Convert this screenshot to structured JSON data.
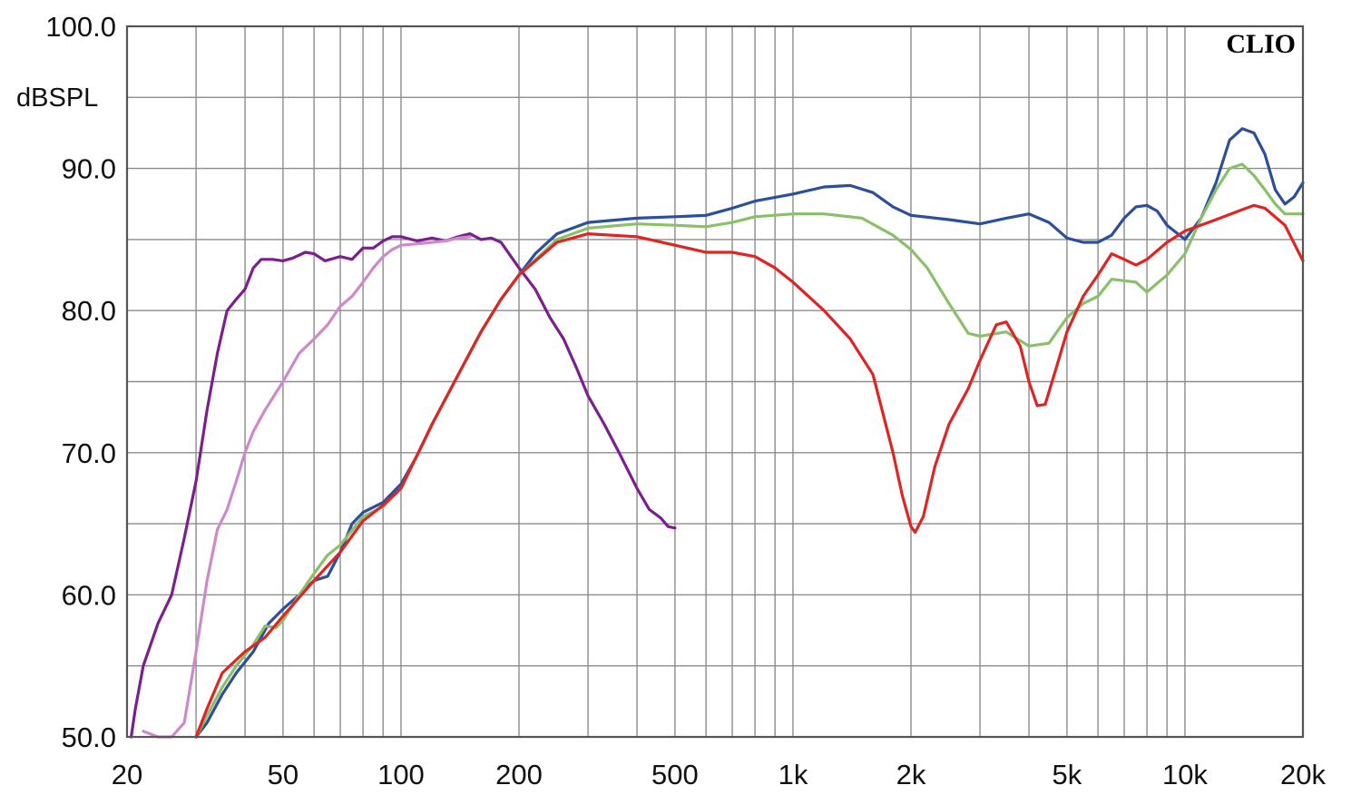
{
  "chart_data": {
    "type": "line",
    "title": "",
    "brand_label": "CLIO",
    "ylabel": "dBSPL",
    "xlabel": "",
    "x_scale": "log",
    "xlim": [
      20,
      20000
    ],
    "ylim": [
      50,
      100
    ],
    "grid": true,
    "x_ticks": [
      {
        "value": 20,
        "label": "20"
      },
      {
        "value": 50,
        "label": "50"
      },
      {
        "value": 100,
        "label": "100"
      },
      {
        "value": 200,
        "label": "200"
      },
      {
        "value": 500,
        "label": "500"
      },
      {
        "value": 1000,
        "label": "1k"
      },
      {
        "value": 2000,
        "label": "2k"
      },
      {
        "value": 5000,
        "label": "5k"
      },
      {
        "value": 10000,
        "label": "10k"
      },
      {
        "value": 20000,
        "label": "20k"
      }
    ],
    "y_ticks": [
      {
        "value": 50,
        "label": "50.0"
      },
      {
        "value": 60,
        "label": "60.0"
      },
      {
        "value": 70,
        "label": "70.0"
      },
      {
        "value": 80,
        "label": "80.0"
      },
      {
        "value": 90,
        "label": "90.0"
      },
      {
        "value": 100,
        "label": "100.0"
      }
    ],
    "series": [
      {
        "color": "#7b1f8e",
        "points": [
          [
            20.5,
            50
          ],
          [
            21,
            52
          ],
          [
            22,
            55
          ],
          [
            24,
            58
          ],
          [
            26,
            60
          ],
          [
            28,
            64
          ],
          [
            30,
            68
          ],
          [
            32,
            73
          ],
          [
            34,
            77
          ],
          [
            36,
            80
          ],
          [
            38,
            80.8
          ],
          [
            40,
            81.5
          ],
          [
            42,
            83
          ],
          [
            44,
            83.6
          ],
          [
            47,
            83.6
          ],
          [
            50,
            83.5
          ],
          [
            53,
            83.7
          ],
          [
            57,
            84.1
          ],
          [
            60,
            84
          ],
          [
            64,
            83.5
          ],
          [
            70,
            83.8
          ],
          [
            75,
            83.6
          ],
          [
            80,
            84.4
          ],
          [
            85,
            84.4
          ],
          [
            90,
            84.9
          ],
          [
            95,
            85.2
          ],
          [
            100,
            85.2
          ],
          [
            110,
            84.9
          ],
          [
            120,
            85.1
          ],
          [
            130,
            84.9
          ],
          [
            140,
            85.2
          ],
          [
            150,
            85.4
          ],
          [
            160,
            85
          ],
          [
            170,
            85.1
          ],
          [
            180,
            84.8
          ],
          [
            200,
            83
          ],
          [
            220,
            81.5
          ],
          [
            240,
            79.5
          ],
          [
            260,
            78
          ],
          [
            280,
            76
          ],
          [
            300,
            74
          ],
          [
            330,
            72
          ],
          [
            360,
            70
          ],
          [
            400,
            67.5
          ],
          [
            430,
            66
          ],
          [
            460,
            65.4
          ],
          [
            480,
            64.8
          ],
          [
            500,
            64.7
          ]
        ]
      },
      {
        "color": "#cc8acb",
        "points": [
          [
            22,
            50.4
          ],
          [
            24,
            50
          ],
          [
            26,
            50
          ],
          [
            28,
            51
          ],
          [
            30,
            56
          ],
          [
            32,
            61
          ],
          [
            34,
            64.6
          ],
          [
            36,
            66
          ],
          [
            38,
            68
          ],
          [
            40,
            70
          ],
          [
            42,
            71.5
          ],
          [
            45,
            73
          ],
          [
            50,
            75
          ],
          [
            55,
            77
          ],
          [
            60,
            78
          ],
          [
            65,
            79
          ],
          [
            70,
            80.3
          ],
          [
            75,
            81
          ],
          [
            80,
            82
          ],
          [
            85,
            83
          ],
          [
            90,
            83.8
          ],
          [
            95,
            84.3
          ],
          [
            100,
            84.6
          ],
          [
            110,
            84.7
          ],
          [
            120,
            84.8
          ],
          [
            130,
            84.9
          ],
          [
            140,
            85.1
          ],
          [
            150,
            85.2
          ]
        ]
      },
      {
        "color": "#2b4e9d",
        "points": [
          [
            30,
            50
          ],
          [
            32,
            51
          ],
          [
            35,
            53
          ],
          [
            38,
            54.5
          ],
          [
            42,
            56
          ],
          [
            46,
            58
          ],
          [
            50,
            59
          ],
          [
            55,
            60
          ],
          [
            60,
            61
          ],
          [
            65,
            61.3
          ],
          [
            70,
            63
          ],
          [
            75,
            65
          ],
          [
            80,
            65.8
          ],
          [
            90,
            66.5
          ],
          [
            100,
            67.8
          ],
          [
            110,
            69.8
          ],
          [
            120,
            72
          ],
          [
            140,
            75.5
          ],
          [
            160,
            78.5
          ],
          [
            180,
            80.8
          ],
          [
            200,
            82.5
          ],
          [
            220,
            84
          ],
          [
            250,
            85.4
          ],
          [
            300,
            86.2
          ],
          [
            400,
            86.5
          ],
          [
            500,
            86.6
          ],
          [
            600,
            86.7
          ],
          [
            700,
            87.2
          ],
          [
            800,
            87.7
          ],
          [
            1000,
            88.2
          ],
          [
            1200,
            88.7
          ],
          [
            1400,
            88.8
          ],
          [
            1600,
            88.3
          ],
          [
            1800,
            87.3
          ],
          [
            2000,
            86.7
          ],
          [
            2500,
            86.4
          ],
          [
            3000,
            86.1
          ],
          [
            3500,
            86.5
          ],
          [
            4000,
            86.8
          ],
          [
            4500,
            86.2
          ],
          [
            5000,
            85.1
          ],
          [
            5500,
            84.8
          ],
          [
            6000,
            84.8
          ],
          [
            6500,
            85.3
          ],
          [
            7000,
            86.5
          ],
          [
            7500,
            87.3
          ],
          [
            8000,
            87.4
          ],
          [
            8500,
            87
          ],
          [
            9000,
            86
          ],
          [
            10000,
            85
          ],
          [
            11000,
            86.5
          ],
          [
            12000,
            89
          ],
          [
            13000,
            92
          ],
          [
            14000,
            92.8
          ],
          [
            15000,
            92.5
          ],
          [
            16000,
            91
          ],
          [
            17000,
            88.5
          ],
          [
            18000,
            87.5
          ],
          [
            19000,
            88
          ],
          [
            20000,
            89
          ]
        ]
      },
      {
        "color": "#8bc06a",
        "points": [
          [
            30,
            50
          ],
          [
            32,
            51.5
          ],
          [
            35,
            53.5
          ],
          [
            38,
            55
          ],
          [
            42,
            56.5
          ],
          [
            45,
            57.8
          ],
          [
            48,
            57.7
          ],
          [
            50,
            58.2
          ],
          [
            55,
            60
          ],
          [
            60,
            61.5
          ],
          [
            65,
            62.8
          ],
          [
            70,
            63.5
          ],
          [
            80,
            65.5
          ],
          [
            90,
            66.2
          ],
          [
            100,
            67.5
          ],
          [
            120,
            72
          ],
          [
            140,
            75.5
          ],
          [
            160,
            78.5
          ],
          [
            180,
            80.8
          ],
          [
            200,
            82.5
          ],
          [
            250,
            85
          ],
          [
            300,
            85.8
          ],
          [
            400,
            86.1
          ],
          [
            500,
            86
          ],
          [
            600,
            85.9
          ],
          [
            700,
            86.2
          ],
          [
            800,
            86.6
          ],
          [
            1000,
            86.8
          ],
          [
            1200,
            86.8
          ],
          [
            1500,
            86.5
          ],
          [
            1800,
            85.3
          ],
          [
            2000,
            84.3
          ],
          [
            2200,
            83
          ],
          [
            2500,
            80.5
          ],
          [
            2800,
            78.4
          ],
          [
            3000,
            78.2
          ],
          [
            3500,
            78.5
          ],
          [
            4000,
            77.5
          ],
          [
            4500,
            77.7
          ],
          [
            5000,
            79.5
          ],
          [
            5500,
            80.5
          ],
          [
            6000,
            81
          ],
          [
            6500,
            82.2
          ],
          [
            7000,
            82.1
          ],
          [
            7500,
            82
          ],
          [
            8000,
            81.3
          ],
          [
            9000,
            82.5
          ],
          [
            10000,
            84
          ],
          [
            11000,
            86.5
          ],
          [
            12000,
            88.5
          ],
          [
            13000,
            90
          ],
          [
            14000,
            90.3
          ],
          [
            15000,
            89.5
          ],
          [
            16000,
            88.5
          ],
          [
            17000,
            87.5
          ],
          [
            18000,
            86.8
          ],
          [
            20000,
            86.8
          ]
        ]
      },
      {
        "color": "#e02424",
        "points": [
          [
            30,
            50
          ],
          [
            32,
            52
          ],
          [
            35,
            54.5
          ],
          [
            40,
            56
          ],
          [
            45,
            57
          ],
          [
            50,
            58.5
          ],
          [
            60,
            61
          ],
          [
            70,
            63
          ],
          [
            80,
            65.2
          ],
          [
            90,
            66.3
          ],
          [
            100,
            67.5
          ],
          [
            120,
            72
          ],
          [
            140,
            75.5
          ],
          [
            160,
            78.5
          ],
          [
            180,
            80.8
          ],
          [
            200,
            82.5
          ],
          [
            250,
            84.8
          ],
          [
            300,
            85.4
          ],
          [
            400,
            85.2
          ],
          [
            500,
            84.6
          ],
          [
            600,
            84.1
          ],
          [
            700,
            84.1
          ],
          [
            800,
            83.8
          ],
          [
            900,
            83
          ],
          [
            1000,
            82
          ],
          [
            1200,
            80
          ],
          [
            1400,
            78
          ],
          [
            1600,
            75.5
          ],
          [
            1800,
            70
          ],
          [
            1900,
            67
          ],
          [
            2000,
            64.8
          ],
          [
            2050,
            64.4
          ],
          [
            2150,
            65.5
          ],
          [
            2300,
            69
          ],
          [
            2500,
            72
          ],
          [
            2800,
            74.5
          ],
          [
            3000,
            76.5
          ],
          [
            3300,
            79
          ],
          [
            3500,
            79.2
          ],
          [
            3800,
            77.5
          ],
          [
            4000,
            75
          ],
          [
            4200,
            73.3
          ],
          [
            4400,
            73.4
          ],
          [
            4700,
            76
          ],
          [
            5000,
            78.5
          ],
          [
            5500,
            81
          ],
          [
            6000,
            82.5
          ],
          [
            6500,
            84
          ],
          [
            7000,
            83.6
          ],
          [
            7500,
            83.2
          ],
          [
            8000,
            83.6
          ],
          [
            9000,
            84.8
          ],
          [
            10000,
            85.6
          ],
          [
            12000,
            86.4
          ],
          [
            14000,
            87.1
          ],
          [
            15000,
            87.4
          ],
          [
            16000,
            87.2
          ],
          [
            18000,
            86
          ],
          [
            20000,
            83.5
          ]
        ]
      }
    ]
  }
}
